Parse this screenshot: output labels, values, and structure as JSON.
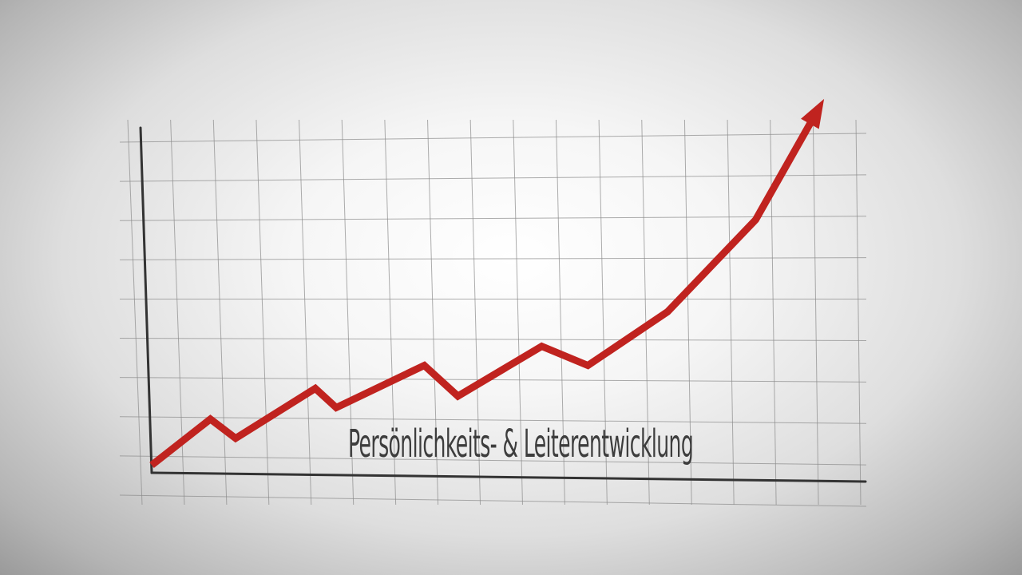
{
  "caption": "Persönlichkeits- & Leiterentwicklung",
  "chart_data": {
    "type": "line",
    "title": "",
    "xlabel": "",
    "ylabel": "",
    "grid": true,
    "legend": "none",
    "axis_color": "#333333",
    "grid_color": "#8a8a8a",
    "line_color": "#c0231f",
    "arrow_at_end": true,
    "x": [
      0,
      1.4,
      2.0,
      3.9,
      4.4,
      6.5,
      7.3,
      9.3,
      10.4,
      12.3,
      14.4,
      15.9
    ],
    "y": [
      0.2,
      1.4,
      0.9,
      2.2,
      1.7,
      2.8,
      2.0,
      3.3,
      2.8,
      4.2,
      6.6,
      9.5
    ],
    "xlim": [
      0,
      17
    ],
    "ylim": [
      0,
      9
    ]
  }
}
